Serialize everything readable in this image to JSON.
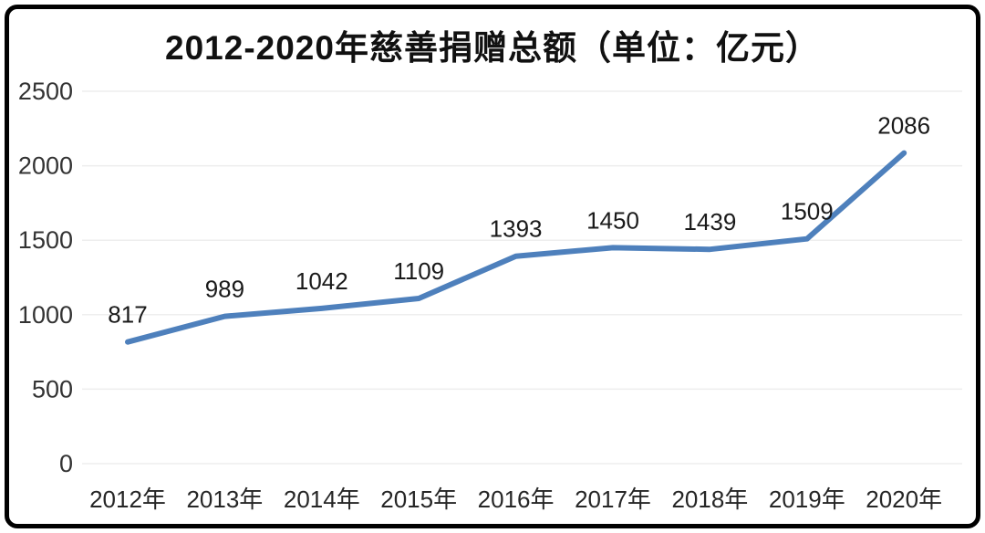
{
  "title": "2012-2020年慈善捐赠总额（单位：亿元）",
  "colors": {
    "line": "#4e80bc",
    "grid": "#eeeeee",
    "text": "#262626",
    "frame": "#000000",
    "background": "#ffffff"
  },
  "chart_data": {
    "type": "line",
    "title": "2012-2020年慈善捐赠总额（单位：亿元）",
    "categories": [
      "2012年",
      "2013年",
      "2014年",
      "2015年",
      "2016年",
      "2017年",
      "2018年",
      "2019年",
      "2020年"
    ],
    "values": [
      817,
      989,
      1042,
      1109,
      1393,
      1450,
      1439,
      1509,
      2086
    ],
    "xlabel": "",
    "ylabel": "",
    "ylim": [
      0,
      2500
    ],
    "yticks": [
      0,
      500,
      1000,
      1500,
      2000,
      2500
    ],
    "grid": true,
    "legend": false,
    "data_labels": true,
    "unit": "亿元"
  }
}
